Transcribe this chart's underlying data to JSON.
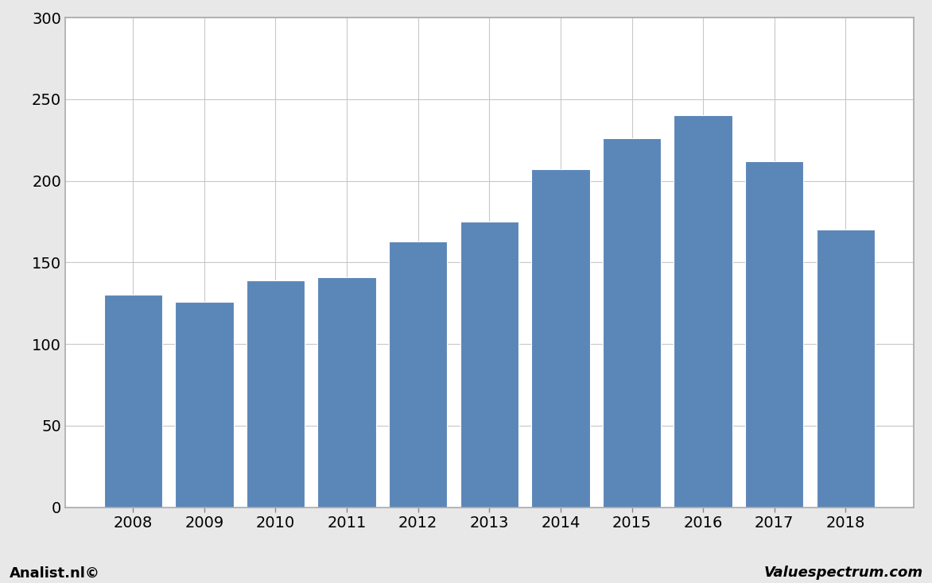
{
  "categories": [
    "2008",
    "2009",
    "2010",
    "2011",
    "2012",
    "2013",
    "2014",
    "2015",
    "2016",
    "2017",
    "2018"
  ],
  "values": [
    130,
    126,
    139,
    141,
    163,
    175,
    207,
    226,
    240,
    212,
    170
  ],
  "bar_color": "#5b86b8",
  "background_color": "#e8e8e8",
  "plot_background_color": "#ffffff",
  "ylim": [
    0,
    300
  ],
  "yticks": [
    0,
    50,
    100,
    150,
    200,
    250,
    300
  ],
  "grid_color": "#c8c8c8",
  "bar_edge_color": "#ffffff",
  "footer_left": "Analist.nl©",
  "footer_right": "Valuespectrum.com",
  "footer_fontsize": 13,
  "tick_fontsize": 14,
  "border_color": "#aaaaaa"
}
